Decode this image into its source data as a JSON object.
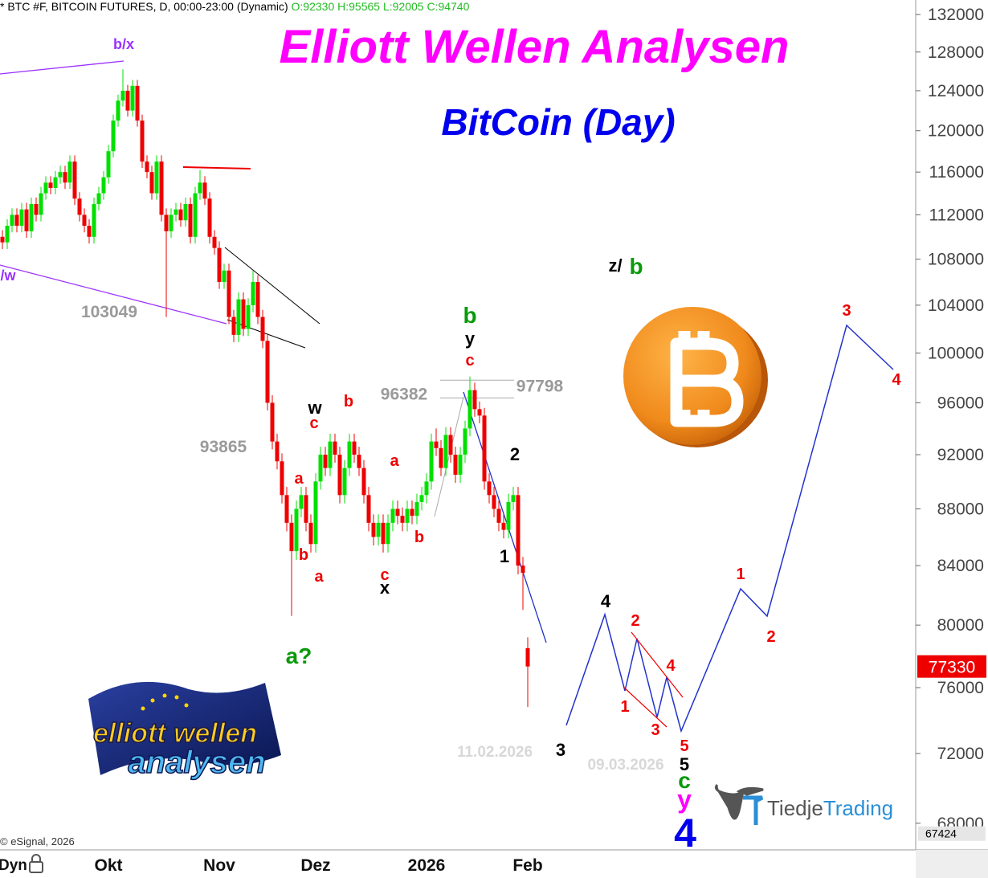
{
  "header": {
    "symbol": "* BTC #F, BITCOIN FUTURES, D, 00:00-23:00 (Dynamic)",
    "ohlc": "O:92330 H:95565 L:92005 C:94740"
  },
  "chart_data": {
    "type": "candlestick",
    "title": "Elliott Wellen Analysen",
    "subtitle": "BitCoin (Day)",
    "categories": [
      null,
      null,
      null,
      null,
      null,
      null,
      null,
      null,
      null,
      null,
      null,
      null,
      null,
      null,
      null,
      null,
      null,
      null,
      null,
      null,
      null,
      null,
      "Okt",
      null,
      null,
      null,
      null,
      null,
      null,
      null,
      null,
      null,
      null,
      null,
      null,
      null,
      null,
      null,
      null,
      null,
      null,
      null,
      null,
      null,
      null,
      "Nov",
      null,
      null,
      null,
      null,
      null,
      null,
      null,
      null,
      null,
      null,
      null,
      null,
      null,
      null,
      null,
      null,
      null,
      null,
      null,
      "Dez",
      null,
      null,
      null,
      null,
      null,
      null,
      null,
      null,
      null,
      null,
      null,
      null,
      null,
      null,
      null,
      null,
      null,
      null,
      null,
      null,
      null,
      null,
      "2026",
      null,
      null,
      null,
      null,
      null,
      null,
      null,
      null,
      null,
      null,
      null,
      null,
      null,
      null,
      null,
      null,
      null,
      null,
      null,
      null,
      "Feb"
    ],
    "ohlc": [
      [
        110000,
        110600,
        108900,
        109500
      ],
      [
        109500,
        111600,
        108900,
        111000
      ],
      [
        111000,
        112600,
        110400,
        112000
      ],
      [
        112000,
        112600,
        110400,
        111000
      ],
      [
        111000,
        113100,
        110400,
        112500
      ],
      [
        112500,
        113100,
        109900,
        110500
      ],
      [
        110500,
        113600,
        109900,
        113000
      ],
      [
        113000,
        113600,
        111400,
        112000
      ],
      [
        112000,
        114600,
        111400,
        114000
      ],
      [
        114000,
        115600,
        113400,
        115000
      ],
      [
        115000,
        115600,
        113900,
        114500
      ],
      [
        114500,
        116100,
        113900,
        115500
      ],
      [
        115500,
        116600,
        114900,
        116000
      ],
      [
        116000,
        116600,
        114400,
        115000
      ],
      [
        115000,
        117600,
        114400,
        117000
      ],
      [
        117000,
        117600,
        112900,
        113500
      ],
      [
        113500,
        114100,
        111400,
        112000
      ],
      [
        112000,
        112600,
        110400,
        111000
      ],
      [
        111000,
        111600,
        109400,
        110000
      ],
      [
        110000,
        113600,
        109400,
        113000
      ],
      [
        113000,
        114600,
        112400,
        114000
      ],
      [
        114000,
        116100,
        113400,
        115500
      ],
      [
        115500,
        118600,
        114900,
        118000
      ],
      [
        118000,
        121600,
        117400,
        121000
      ],
      [
        121000,
        123600,
        120400,
        123000
      ],
      [
        123000,
        126200,
        122400,
        124000
      ],
      [
        124000,
        124600,
        121400,
        122000
      ],
      [
        122000,
        125100,
        121400,
        124500
      ],
      [
        124500,
        125100,
        120400,
        121000
      ],
      [
        121000,
        121600,
        116400,
        117000
      ],
      [
        117000,
        117600,
        115400,
        116000
      ],
      [
        116000,
        116600,
        113400,
        114000
      ],
      [
        114000,
        117600,
        113400,
        117000
      ],
      [
        117000,
        117600,
        111400,
        112000
      ],
      [
        112000,
        112600,
        103000,
        110500
      ],
      [
        110500,
        112600,
        109900,
        112000
      ],
      [
        112000,
        113100,
        111400,
        112500
      ],
      [
        112500,
        113100,
        110900,
        111500
      ],
      [
        111500,
        113600,
        110900,
        113000
      ],
      [
        113000,
        113600,
        109400,
        110000
      ],
      [
        110000,
        114600,
        109400,
        114000
      ],
      [
        114000,
        116200,
        113400,
        115000
      ],
      [
        115000,
        115600,
        112900,
        113500
      ],
      [
        113500,
        114100,
        109400,
        110000
      ],
      [
        110000,
        110600,
        108400,
        109000
      ],
      [
        109000,
        109600,
        105400,
        106000
      ],
      [
        106000,
        107600,
        105400,
        107000
      ],
      [
        107000,
        107600,
        102400,
        103000
      ],
      [
        103000,
        103600,
        100900,
        101500
      ],
      [
        101500,
        105100,
        100900,
        104500
      ],
      [
        104500,
        105100,
        101400,
        102000
      ],
      [
        102000,
        104600,
        101400,
        104000
      ],
      [
        104000,
        107000,
        103400,
        106000
      ],
      [
        106000,
        106600,
        102400,
        103000
      ],
      [
        103000,
        103600,
        100400,
        101000
      ],
      [
        101000,
        101600,
        95400,
        96000
      ],
      [
        96000,
        96600,
        92400,
        93000
      ],
      [
        93000,
        93600,
        90900,
        91500
      ],
      [
        91500,
        92100,
        88400,
        89000
      ],
      [
        89000,
        89600,
        86400,
        87000
      ],
      [
        87000,
        87600,
        80600,
        85000
      ],
      [
        85000,
        88600,
        84400,
        88000
      ],
      [
        88000,
        89600,
        87400,
        89000
      ],
      [
        89000,
        89600,
        86400,
        87000
      ],
      [
        87000,
        87600,
        84900,
        85500
      ],
      [
        85500,
        90600,
        84900,
        90000
      ],
      [
        90000,
        92600,
        89400,
        92000
      ],
      [
        92000,
        92600,
        90400,
        91000
      ],
      [
        91000,
        93600,
        90400,
        93000
      ],
      [
        93000,
        93600,
        91400,
        92000
      ],
      [
        92000,
        92600,
        88400,
        89000
      ],
      [
        89000,
        91600,
        88400,
        91000
      ],
      [
        91000,
        93600,
        90400,
        93000
      ],
      [
        93000,
        93600,
        91400,
        92000
      ],
      [
        92000,
        92600,
        90400,
        91000
      ],
      [
        91000,
        91600,
        88400,
        89000
      ],
      [
        89000,
        89600,
        86400,
        87000
      ],
      [
        87000,
        87600,
        85400,
        86000
      ],
      [
        86000,
        87600,
        85400,
        87000
      ],
      [
        87000,
        87600,
        84900,
        85500
      ],
      [
        85500,
        87600,
        84900,
        87000
      ],
      [
        87000,
        88600,
        86400,
        88000
      ],
      [
        88000,
        88600,
        86900,
        87500
      ],
      [
        87500,
        88100,
        86400,
        87000
      ],
      [
        87000,
        88600,
        86400,
        88000
      ],
      [
        88000,
        88600,
        86900,
        87500
      ],
      [
        87500,
        89100,
        86900,
        88500
      ],
      [
        88500,
        89600,
        87900,
        89000
      ],
      [
        89000,
        90600,
        88400,
        90000
      ],
      [
        90000,
        93600,
        89400,
        93000
      ],
      [
        93000,
        94000,
        91900,
        92500
      ],
      [
        92500,
        93100,
        90400,
        91000
      ],
      [
        91000,
        94100,
        90400,
        93500
      ],
      [
        93500,
        94100,
        91400,
        92000
      ],
      [
        92000,
        92600,
        89900,
        90500
      ],
      [
        90500,
        92600,
        89900,
        92000
      ],
      [
        92000,
        94600,
        91400,
        94000
      ],
      [
        94000,
        98100,
        93400,
        97000
      ],
      [
        97000,
        97600,
        94900,
        95500
      ],
      [
        95500,
        96100,
        94400,
        95000
      ],
      [
        95000,
        95600,
        89400,
        90000
      ],
      [
        90000,
        90600,
        88400,
        89000
      ],
      [
        89000,
        89600,
        87400,
        88000
      ],
      [
        88000,
        88600,
        86400,
        87000
      ],
      [
        87000,
        87600,
        85900,
        86500
      ],
      [
        86500,
        89100,
        85900,
        88500
      ],
      [
        88500,
        89600,
        87900,
        89000
      ],
      [
        89000,
        89600,
        83400,
        84000
      ],
      [
        84000,
        84600,
        81000,
        83500
      ],
      [
        78500,
        79200,
        74800,
        77330
      ]
    ],
    "up_color": "#00e000",
    "down_color": "#ee0000",
    "ylim": [
      66530,
      133580
    ],
    "log_scale": true,
    "yticks": [
      68000,
      72000,
      76000,
      80000,
      84000,
      88000,
      92000,
      96000,
      100000,
      104000,
      108000,
      112000,
      116000,
      120000,
      124000,
      128000,
      132000
    ],
    "bottom_marker": 67424,
    "reference_levels": [
      96382,
      97798
    ],
    "annotations": [
      "b/x",
      "/w",
      103049,
      93865,
      "w",
      "c",
      "b",
      "a",
      "b",
      "a",
      "a",
      "b",
      "c",
      "x",
      "a?",
      "b",
      "y",
      "c",
      "2",
      "1",
      "z/",
      "b",
      "4",
      "3",
      "2",
      "4",
      "1",
      "3",
      "5",
      "5",
      "c",
      "y",
      "4",
      "1",
      "2",
      "3",
      "4",
      "11.02.2026",
      "09.03.2026"
    ]
  },
  "footer": {
    "copyright": "© eSignal, 2026",
    "mode": "Dyn"
  },
  "logos": {
    "ewa": [
      "elliott wellen",
      "analysen"
    ],
    "brand": [
      "Tiedje",
      "Trading"
    ]
  }
}
